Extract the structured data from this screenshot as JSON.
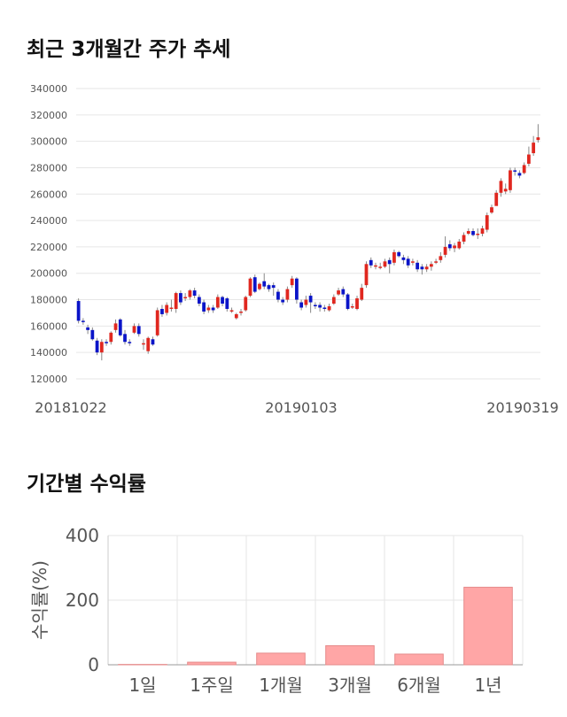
{
  "section1": {
    "title": "최근 3개월간 주가 추세"
  },
  "section2": {
    "title": "기간별 수익률"
  },
  "chart_data": [
    {
      "type": "candlestick",
      "ylim": [
        120000,
        340000
      ],
      "y_ticks": [
        120000,
        140000,
        160000,
        180000,
        200000,
        220000,
        240000,
        260000,
        280000,
        300000,
        320000,
        340000
      ],
      "x_labels": [
        "20181022",
        "20190103",
        "20190319"
      ],
      "grid": true,
      "colors": {
        "up": "#e0271f",
        "down": "#0a14c8",
        "wick": "#888888"
      },
      "candles": [
        [
          179000,
          164000,
          181000,
          162000
        ],
        [
          164000,
          163000,
          166000,
          161000
        ],
        [
          159000,
          157000,
          161000,
          154000
        ],
        [
          157000,
          150000,
          159000,
          149000
        ],
        [
          149000,
          140000,
          151000,
          138000
        ],
        [
          140000,
          148000,
          150000,
          134000
        ],
        [
          148000,
          147000,
          150000,
          145000
        ],
        [
          148000,
          155000,
          156000,
          146000
        ],
        [
          157000,
          162000,
          165000,
          155000
        ],
        [
          165000,
          153000,
          166000,
          152000
        ],
        [
          154000,
          148000,
          157000,
          146000
        ],
        [
          148000,
          147000,
          150000,
          145000
        ],
        [
          155000,
          160000,
          162000,
          154000
        ],
        [
          160000,
          154000,
          162000,
          152000
        ],
        [
          147000,
          147000,
          150000,
          142000
        ],
        [
          141000,
          151000,
          152000,
          139000
        ],
        [
          150000,
          146000,
          152000,
          145000
        ],
        [
          153000,
          172000,
          174000,
          152000
        ],
        [
          173000,
          169000,
          176000,
          167000
        ],
        [
          170000,
          176000,
          178000,
          168000
        ],
        [
          173000,
          174000,
          180000,
          171000
        ],
        [
          173000,
          185000,
          186000,
          170000
        ],
        [
          185000,
          178000,
          187000,
          176000
        ],
        [
          181000,
          182000,
          185000,
          179000
        ],
        [
          182000,
          187000,
          188000,
          180000
        ],
        [
          187000,
          183000,
          189000,
          181000
        ],
        [
          182000,
          177000,
          184000,
          175000
        ],
        [
          178000,
          171000,
          180000,
          169000
        ],
        [
          172000,
          174000,
          176000,
          170000
        ],
        [
          174000,
          172000,
          176000,
          170000
        ],
        [
          174000,
          182000,
          184000,
          173000
        ],
        [
          182000,
          177000,
          183000,
          175000
        ],
        [
          181000,
          173000,
          182000,
          171000
        ],
        [
          172000,
          172000,
          174000,
          170000
        ],
        [
          166000,
          169000,
          170000,
          165000
        ],
        [
          170000,
          171000,
          173000,
          168000
        ],
        [
          172000,
          182000,
          183000,
          171000
        ],
        [
          183000,
          196000,
          197000,
          182000
        ],
        [
          197000,
          186000,
          199000,
          185000
        ],
        [
          188000,
          192000,
          193000,
          187000
        ],
        [
          194000,
          190000,
          200000,
          188000
        ],
        [
          191000,
          188000,
          192000,
          186000
        ],
        [
          191000,
          189000,
          193000,
          183000
        ],
        [
          186000,
          180000,
          188000,
          178000
        ],
        [
          180000,
          178000,
          182000,
          176000
        ],
        [
          180000,
          188000,
          190000,
          178000
        ],
        [
          191000,
          196000,
          198000,
          189000
        ],
        [
          196000,
          180000,
          197000,
          177000
        ],
        [
          178000,
          174000,
          180000,
          172000
        ],
        [
          176000,
          180000,
          183000,
          174000
        ],
        [
          183000,
          178000,
          185000,
          170000
        ],
        [
          176000,
          175000,
          178000,
          173000
        ],
        [
          176000,
          174000,
          178000,
          171000
        ],
        [
          174000,
          173000,
          176000,
          171000
        ],
        [
          172000,
          175000,
          177000,
          171000
        ],
        [
          177000,
          182000,
          184000,
          176000
        ],
        [
          184000,
          187000,
          189000,
          183000
        ],
        [
          188000,
          184000,
          190000,
          182000
        ],
        [
          184000,
          173000,
          185000,
          172000
        ],
        [
          174000,
          175000,
          177000,
          173000
        ],
        [
          173000,
          181000,
          183000,
          172000
        ],
        [
          180000,
          189000,
          192000,
          179000
        ],
        [
          191000,
          207000,
          209000,
          189000
        ],
        [
          210000,
          206000,
          212000,
          204000
        ],
        [
          205000,
          206000,
          208000,
          203000
        ],
        [
          205000,
          205000,
          208000,
          203000
        ],
        [
          205000,
          209000,
          211000,
          204000
        ],
        [
          210000,
          207000,
          212000,
          200000
        ],
        [
          208000,
          216000,
          218000,
          206000
        ],
        [
          216000,
          213000,
          217000,
          212000
        ],
        [
          212000,
          210000,
          214000,
          207000
        ],
        [
          211000,
          206000,
          213000,
          204000
        ],
        [
          208000,
          209000,
          211000,
          206000
        ],
        [
          208000,
          203000,
          210000,
          201000
        ],
        [
          205000,
          203000,
          207000,
          199000
        ],
        [
          203000,
          205000,
          207000,
          201000
        ],
        [
          205000,
          207000,
          209000,
          202000
        ],
        [
          209000,
          209000,
          211000,
          207000
        ],
        [
          210000,
          213000,
          216000,
          208000
        ],
        [
          214000,
          220000,
          228000,
          212000
        ],
        [
          222000,
          219000,
          225000,
          217000
        ],
        [
          219000,
          221000,
          223000,
          216000
        ],
        [
          219000,
          224000,
          226000,
          218000
        ],
        [
          224000,
          229000,
          231000,
          222000
        ],
        [
          230000,
          232000,
          234000,
          229000
        ],
        [
          232000,
          229000,
          234000,
          228000
        ],
        [
          229000,
          230000,
          234000,
          226000
        ],
        [
          230000,
          234000,
          236000,
          228000
        ],
        [
          233000,
          244000,
          246000,
          231000
        ],
        [
          246000,
          250000,
          252000,
          245000
        ],
        [
          251000,
          261000,
          263000,
          258000
        ],
        [
          261000,
          270000,
          272000,
          258000
        ],
        [
          262000,
          264000,
          268000,
          260000
        ],
        [
          263000,
          278000,
          280000,
          261000
        ],
        [
          278000,
          277000,
          280000,
          274000
        ],
        [
          276000,
          274000,
          278000,
          272000
        ],
        [
          276000,
          282000,
          284000,
          275000
        ],
        [
          283000,
          290000,
          296000,
          281000
        ],
        [
          291000,
          299000,
          304000,
          289000
        ],
        [
          301000,
          303000,
          313000,
          299000
        ]
      ]
    },
    {
      "type": "bar",
      "categories": [
        "1일",
        "1주일",
        "1개월",
        "3개월",
        "6개월",
        "1년"
      ],
      "values": [
        1,
        8,
        36,
        59,
        33,
        240
      ],
      "ylabel": "수익률(%)",
      "ylim": [
        0,
        400
      ],
      "y_ticks": [
        0,
        200,
        400
      ],
      "colors": {
        "bar": "#ffa6a6",
        "bar_edge": "#e58a8a"
      }
    }
  ]
}
